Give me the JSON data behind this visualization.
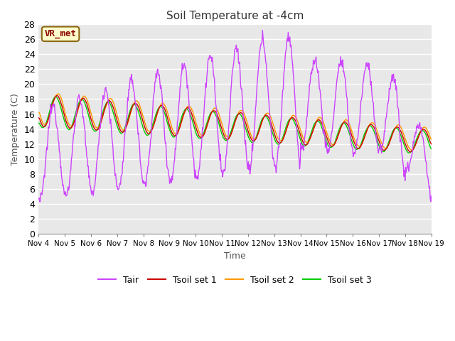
{
  "title": "Soil Temperature at -4cm",
  "xlabel": "Time",
  "ylabel": "Temperature (C)",
  "ylim": [
    0,
    28
  ],
  "yticks": [
    0,
    2,
    4,
    6,
    8,
    10,
    12,
    14,
    16,
    18,
    20,
    22,
    24,
    26,
    28
  ],
  "fig_bg_color": "#ffffff",
  "plot_bg_color": "#e8e8e8",
  "grid_color": "#ffffff",
  "annotation_text": "VR_met",
  "annotation_bg": "#ffffcc",
  "annotation_border": "#8B6914",
  "annotation_text_color": "#8B0000",
  "series": {
    "Tair": {
      "color": "#cc44ff",
      "lw": 1.0
    },
    "Tsoil set 1": {
      "color": "#cc0000",
      "lw": 1.0
    },
    "Tsoil set 2": {
      "color": "#ff9900",
      "lw": 1.0
    },
    "Tsoil set 3": {
      "color": "#00cc00",
      "lw": 1.0
    }
  },
  "x_tick_labels": [
    "Nov 4",
    "Nov 5",
    "Nov 6",
    "Nov 7",
    "Nov 8",
    "Nov 9",
    "Nov 10",
    "Nov 11",
    "Nov 12",
    "Nov 13",
    "Nov 14",
    "Nov 15",
    "Nov 16",
    "Nov 17",
    "Nov 18",
    "Nov 19"
  ],
  "n_days": 15,
  "pts_per_day": 48
}
